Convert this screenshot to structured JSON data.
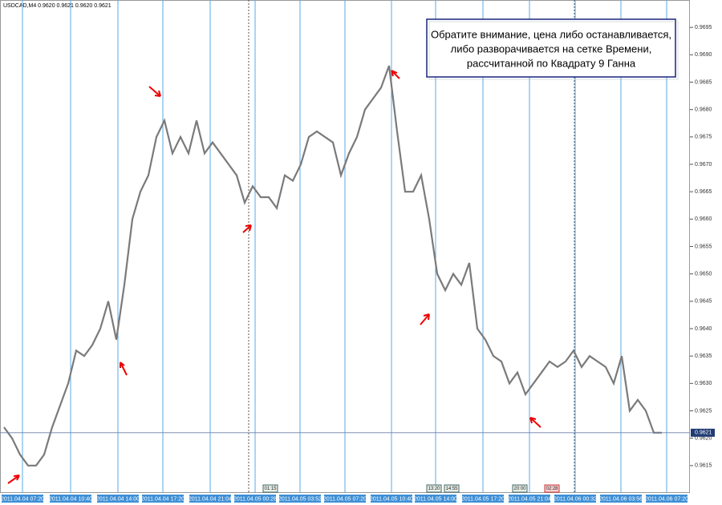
{
  "chart_data": {
    "type": "line",
    "title": "USDCAD,M4  0.9620 0.9621 0.9620 0.9621",
    "annotation": [
      "Обратите внимание, цена либо останавливается,",
      "либо разворачивается на сетке Времени,",
      "рассчитанной по Квадрату 9 Ганна"
    ],
    "series": [
      {
        "name": "USDCAD",
        "color": "#7a7a7a",
        "values": [
          0.9622,
          0.962,
          0.9617,
          0.9615,
          0.9615,
          0.9617,
          0.9622,
          0.9626,
          0.963,
          0.9636,
          0.9635,
          0.9637,
          0.964,
          0.9645,
          0.9638,
          0.9648,
          0.966,
          0.9665,
          0.9668,
          0.9675,
          0.9678,
          0.9672,
          0.9675,
          0.9672,
          0.9678,
          0.9672,
          0.9674,
          0.9672,
          0.967,
          0.9668,
          0.9663,
          0.9666,
          0.9664,
          0.9664,
          0.9662,
          0.9668,
          0.9667,
          0.967,
          0.9675,
          0.9676,
          0.9675,
          0.9674,
          0.9668,
          0.9672,
          0.9675,
          0.968,
          0.9682,
          0.9684,
          0.9688,
          0.9676,
          0.9665,
          0.9665,
          0.9668,
          0.966,
          0.965,
          0.9647,
          0.965,
          0.9648,
          0.9652,
          0.964,
          0.9638,
          0.9635,
          0.9634,
          0.963,
          0.9632,
          0.9628,
          0.963,
          0.9632,
          0.9634,
          0.9633,
          0.9634,
          0.9636,
          0.9633,
          0.9635,
          0.9634,
          0.9633,
          0.963,
          0.9635,
          0.9625,
          0.9627,
          0.9625,
          0.9621,
          0.9621
        ]
      }
    ],
    "xlim": [
      -0.5,
      85.5
    ],
    "xticks": [
      {
        "value": 2.3,
        "label": "2011.04.04 07:20"
      },
      {
        "value": 8.3,
        "label": "2011.04.04 10:40"
      },
      {
        "value": 14.2,
        "label": "2011.04.04 14:00"
      },
      {
        "value": 19.8,
        "label": "2011.04.04 17:20"
      },
      {
        "value": 25.7,
        "label": "2011.04.04 21:04"
      },
      {
        "value": 31.3,
        "label": "2011.04.05 00:28"
      },
      {
        "value": 36.9,
        "label": "2011.04.05 03:52"
      },
      {
        "value": 42.5,
        "label": "2011.04.05 07:20"
      },
      {
        "value": 48.3,
        "label": "2011.04.05 10:40"
      },
      {
        "value": 53.8,
        "label": "2011.04.05 14:00"
      },
      {
        "value": 59.7,
        "label": "2011.04.05 17:20"
      },
      {
        "value": 65.5,
        "label": "2011.04.05 21:04"
      },
      {
        "value": 71.2,
        "label": "2011.04.06 00:32"
      },
      {
        "value": 76.9,
        "label": "2011.04.06 03:56"
      },
      {
        "value": 82.6,
        "label": "2011.04.06 07:20"
      }
    ],
    "ylim": [
      0.961,
      0.97
    ],
    "yticks": [
      0.9615,
      {
        "value": 0.962,
        "label": "0.9620"
      },
      0.9625,
      {
        "value": 0.963,
        "label": "0.9630"
      },
      0.9635,
      {
        "value": 0.964,
        "label": "0.9640"
      },
      0.9645,
      {
        "value": 0.965,
        "label": "0.9650"
      },
      0.9655,
      {
        "value": 0.966,
        "label": "0.9660"
      },
      0.9665,
      {
        "value": 0.967,
        "label": "0.9670"
      },
      0.9675,
      {
        "value": 0.968,
        "label": "0.9680"
      },
      0.9685,
      {
        "value": 0.969,
        "label": "0.9690"
      },
      0.9695
    ],
    "last_price": 0.9621,
    "time_markers": [
      "01:15",
      "13:20",
      "14:55",
      "20:00",
      "02:28"
    ],
    "grid_color": "#5aa9e6"
  }
}
